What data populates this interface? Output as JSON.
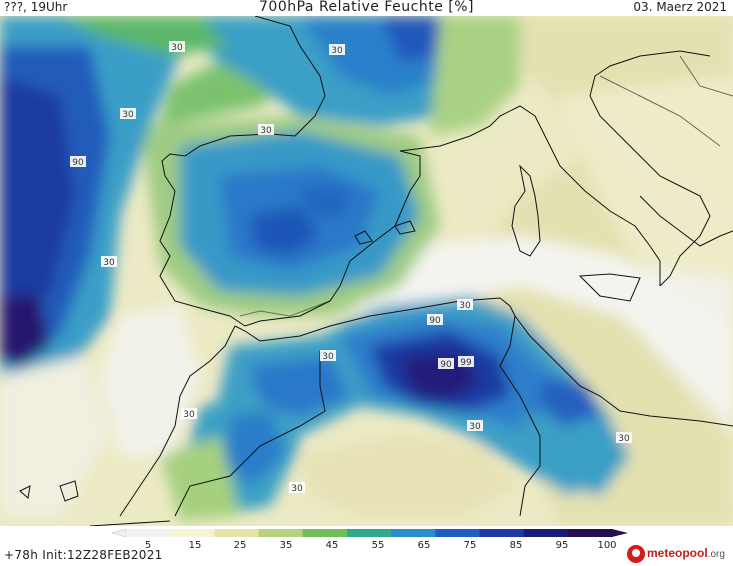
{
  "header": {
    "run_time": "???, 19Uhr",
    "title": "700hPa Relative Feuchte [%]",
    "date": "03. Maerz 2021"
  },
  "footer": {
    "forecast_info": "+78h Init:12Z28FEB2021"
  },
  "logo": {
    "name": "meteopool",
    "suffix": ".org"
  },
  "map": {
    "contour_labels": [
      "30",
      "30",
      "30",
      "30",
      "90",
      "30",
      "30",
      "30",
      "90",
      "90",
      "99",
      "30",
      "30",
      "30",
      "30"
    ]
  },
  "legend": {
    "ticks": [
      "5",
      "15",
      "25",
      "35",
      "45",
      "55",
      "65",
      "75",
      "85",
      "95",
      "100"
    ],
    "colors": [
      "#f2f2f2",
      "#f6f3d6",
      "#e6e4a7",
      "#b6d27e",
      "#6fc05b",
      "#31a98a",
      "#2a8fc9",
      "#1e5dc4",
      "#1d3aa3",
      "#1c1b78",
      "#26104f"
    ]
  }
}
